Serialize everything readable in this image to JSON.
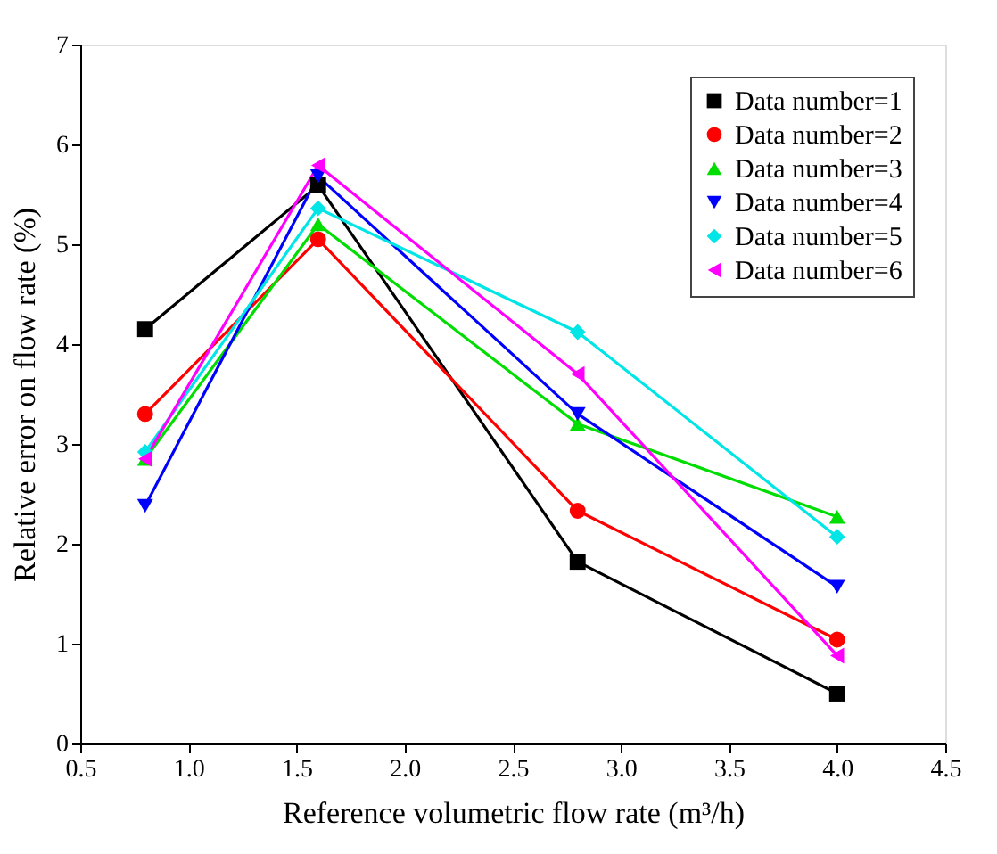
{
  "chart_data": {
    "type": "line",
    "xlabel": "Reference volumetric flow rate (m³/h)",
    "ylabel": "Relative error on flow rate (%)",
    "x": [
      0.8,
      1.6,
      2.8,
      4.0
    ],
    "xlim": [
      0.5,
      4.5
    ],
    "xticks": [
      0.5,
      {
        "value": 1,
        "label": "1.0"
      },
      1.5,
      {
        "value": 2,
        "label": "2.0"
      },
      2.5,
      {
        "value": 3,
        "label": "3.0"
      },
      3.5,
      {
        "value": 4,
        "label": "4.0"
      },
      4.5
    ],
    "ylim": [
      0,
      7
    ],
    "yticks": [
      0,
      1,
      2,
      3,
      4,
      5,
      6,
      7
    ],
    "grid": false,
    "legend": "top right",
    "line_style": "solid",
    "series": [
      {
        "name": "Data number=1",
        "color": "#000000",
        "marker": "square",
        "values": [
          4.15,
          5.59,
          1.82,
          0.5
        ]
      },
      {
        "name": "Data number=2",
        "color": "#ff0000",
        "marker": "circle",
        "values": [
          3.3,
          5.05,
          2.33,
          1.04
        ]
      },
      {
        "name": "Data number=3",
        "color": "#00dd00",
        "marker": "triangle",
        "values": [
          2.85,
          5.2,
          3.2,
          2.27
        ]
      },
      {
        "name": "Data number=4",
        "color": "#0000ff",
        "marker": "triangle-down",
        "values": [
          2.38,
          5.68,
          3.3,
          1.57
        ]
      },
      {
        "name": "Data number=5",
        "color": "#00e5e5",
        "marker": "diamond",
        "values": [
          2.92,
          5.36,
          4.12,
          2.07
        ]
      },
      {
        "name": "Data number=6",
        "color": "#ff00ff",
        "marker": "triangle-left",
        "values": [
          2.85,
          5.79,
          3.7,
          0.88
        ]
      }
    ]
  }
}
